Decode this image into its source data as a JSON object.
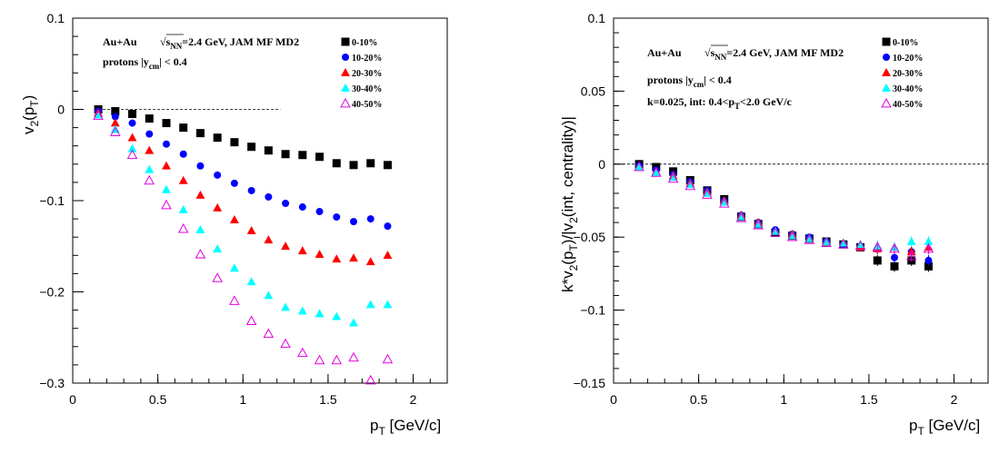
{
  "chart_data": [
    {
      "type": "scatter",
      "xlabel": "p_T [GeV/c]",
      "ylabel": "v_2(p_T)",
      "xlim": [
        0,
        2.2
      ],
      "ylim": [
        -0.3,
        0.1
      ],
      "xticks": [
        0,
        0.5,
        1,
        1.5,
        2
      ],
      "xtick_labels": [
        "0",
        "0.5",
        "1",
        "1.5",
        "2"
      ],
      "yticks": [
        -0.3,
        -0.2,
        -0.1,
        0,
        0.1
      ],
      "ytick_labels": [
        "−0.3",
        "−0.2",
        "−0.1",
        "0",
        "0.1"
      ],
      "reference_line": {
        "y": 0,
        "x_range": [
          0.15,
          1.22
        ]
      },
      "annotations": [
        "Au+Au",
        "√s_NN=2.4 GeV, JAM MF MD2",
        "protons |y_cm| < 0.4"
      ],
      "x": [
        0.15,
        0.25,
        0.35,
        0.45,
        0.55,
        0.65,
        0.75,
        0.85,
        0.95,
        1.05,
        1.15,
        1.25,
        1.35,
        1.45,
        1.55,
        1.65,
        1.75,
        1.85
      ],
      "series": [
        {
          "name": "0-10%",
          "marker": "square",
          "color": "#000000",
          "values": [
            0.0,
            -0.002,
            -0.005,
            -0.01,
            -0.015,
            -0.02,
            -0.026,
            -0.031,
            -0.036,
            -0.041,
            -0.045,
            -0.049,
            -0.05,
            -0.052,
            -0.059,
            -0.061,
            -0.059,
            -0.061
          ]
        },
        {
          "name": "10-20%",
          "marker": "circle",
          "color": "#0000ff",
          "values": [
            -0.002,
            -0.008,
            -0.015,
            -0.027,
            -0.038,
            -0.049,
            -0.062,
            -0.072,
            -0.081,
            -0.089,
            -0.096,
            -0.103,
            -0.107,
            -0.112,
            -0.118,
            -0.123,
            -0.12,
            -0.128
          ]
        },
        {
          "name": "20-30%",
          "marker": "triangle",
          "color": "#ff0000",
          "values": [
            -0.004,
            -0.015,
            -0.031,
            -0.045,
            -0.062,
            -0.078,
            -0.094,
            -0.108,
            -0.121,
            -0.133,
            -0.143,
            -0.15,
            -0.155,
            -0.159,
            -0.164,
            -0.163,
            -0.167,
            -0.16
          ]
        },
        {
          "name": "30-40%",
          "marker": "triangle",
          "color": "#00ffff",
          "values": [
            -0.006,
            -0.022,
            -0.043,
            -0.066,
            -0.088,
            -0.11,
            -0.132,
            -0.153,
            -0.174,
            -0.189,
            -0.204,
            -0.217,
            -0.221,
            -0.224,
            -0.227,
            -0.234,
            -0.214,
            -0.214
          ]
        },
        {
          "name": "40-50%",
          "marker": "triangle-open",
          "color": "#e000e0",
          "values": [
            -0.007,
            -0.025,
            -0.05,
            -0.078,
            -0.105,
            -0.131,
            -0.159,
            -0.185,
            -0.21,
            -0.232,
            -0.246,
            -0.257,
            -0.267,
            -0.275,
            -0.275,
            -0.272,
            -0.297,
            -0.274
          ]
        }
      ]
    },
    {
      "type": "scatter",
      "xlabel": "p_T [GeV/c]",
      "ylabel": "k*v_2(p_T)/|v_2(int, centrality)|",
      "xlim": [
        0,
        2.2
      ],
      "ylim": [
        -0.15,
        0.1
      ],
      "xticks": [
        0,
        0.5,
        1,
        1.5,
        2
      ],
      "xtick_labels": [
        "0",
        "0.5",
        "1",
        "1.5",
        "2"
      ],
      "yticks": [
        -0.15,
        -0.1,
        -0.05,
        0,
        0.05,
        0.1
      ],
      "ytick_labels": [
        "−0.15",
        "−0.1",
        "−0.05",
        "0",
        "0.05",
        "0.1"
      ],
      "reference_line": {
        "y": 0,
        "x_range": [
          0.0,
          2.2
        ]
      },
      "annotations": [
        "Au+Au",
        "√s_NN=2.4 GeV, JAM MF MD2",
        "protons |y_cm| < 0.4",
        "k=0.025, int: 0.4<p_T<2.0 GeV/c"
      ],
      "x": [
        0.15,
        0.25,
        0.35,
        0.45,
        0.55,
        0.65,
        0.75,
        0.85,
        0.95,
        1.05,
        1.15,
        1.25,
        1.35,
        1.45,
        1.55,
        1.65,
        1.75,
        1.85
      ],
      "series": [
        {
          "name": "0-10%",
          "marker": "square",
          "color": "#000000",
          "values": [
            0.0,
            -0.002,
            -0.005,
            -0.011,
            -0.018,
            -0.024,
            -0.036,
            -0.041,
            -0.047,
            -0.049,
            -0.051,
            -0.053,
            -0.055,
            -0.057,
            -0.066,
            -0.07,
            -0.066,
            -0.07
          ]
        },
        {
          "name": "10-20%",
          "marker": "circle",
          "color": "#0000ff",
          "values": [
            -0.001,
            -0.004,
            -0.007,
            -0.012,
            -0.018,
            -0.025,
            -0.035,
            -0.04,
            -0.045,
            -0.048,
            -0.05,
            -0.053,
            -0.055,
            -0.057,
            -0.058,
            -0.064,
            -0.06,
            -0.066
          ]
        },
        {
          "name": "20-30%",
          "marker": "triangle",
          "color": "#ff0000",
          "values": [
            -0.002,
            -0.005,
            -0.008,
            -0.013,
            -0.019,
            -0.025,
            -0.035,
            -0.04,
            -0.046,
            -0.048,
            -0.051,
            -0.053,
            -0.054,
            -0.057,
            -0.058,
            -0.057,
            -0.06,
            -0.057
          ]
        },
        {
          "name": "30-40%",
          "marker": "triangle",
          "color": "#00ffff",
          "values": [
            -0.002,
            -0.006,
            -0.009,
            -0.014,
            -0.02,
            -0.026,
            -0.036,
            -0.041,
            -0.046,
            -0.049,
            -0.051,
            -0.053,
            -0.054,
            -0.055,
            -0.056,
            -0.057,
            -0.053,
            -0.053
          ]
        },
        {
          "name": "40-50%",
          "marker": "triangle-open",
          "color": "#e000e0",
          "values": [
            -0.002,
            -0.006,
            -0.01,
            -0.015,
            -0.021,
            -0.027,
            -0.037,
            -0.042,
            -0.047,
            -0.05,
            -0.052,
            -0.054,
            -0.055,
            -0.056,
            -0.057,
            -0.058,
            -0.063,
            -0.058
          ]
        }
      ]
    }
  ]
}
